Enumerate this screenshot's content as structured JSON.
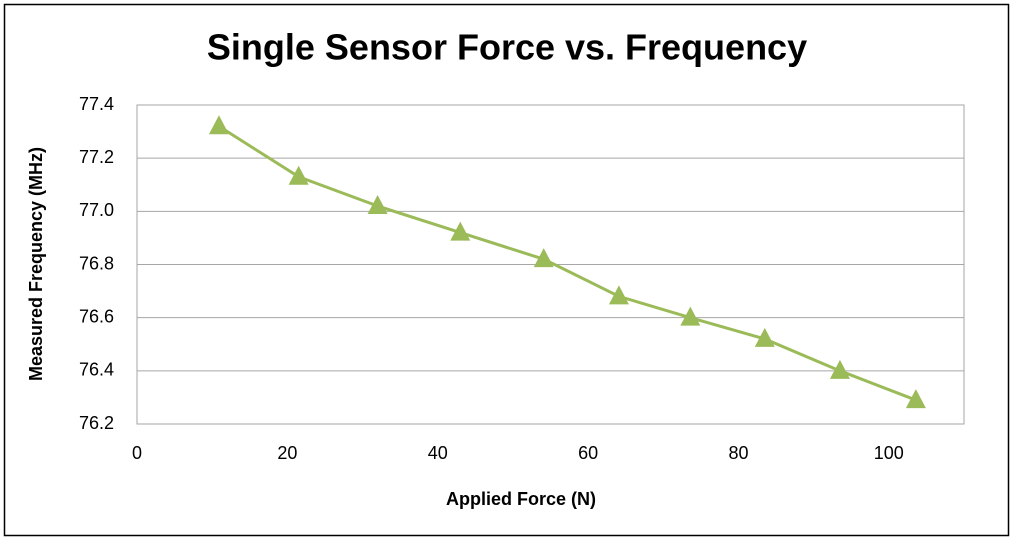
{
  "chart_data": {
    "type": "line",
    "title": "Single Sensor Force vs. Frequency",
    "x_label": "Applied Force (N)",
    "y_label": "Measured Frequency (MHz)",
    "series": [
      {
        "x": [
          10.9,
          21.5,
          32.0,
          43.0,
          54.1,
          64.1,
          73.6,
          83.5,
          93.5,
          103.6
        ],
        "values": [
          77.32,
          77.13,
          77.02,
          76.92,
          76.82,
          76.68,
          76.6,
          76.52,
          76.4,
          76.29
        ],
        "color": "#9bbb59",
        "marker": "triangle"
      }
    ],
    "xlim": [
      0,
      110
    ],
    "xticks": [
      0,
      20,
      40,
      60,
      80,
      100
    ],
    "ylim": [
      76.2,
      77.4
    ],
    "yticks": [
      76.2,
      76.4,
      76.6,
      76.8,
      {
        "value": 77,
        "label": "77.0"
      },
      77.2,
      77.4
    ],
    "grid": true
  }
}
